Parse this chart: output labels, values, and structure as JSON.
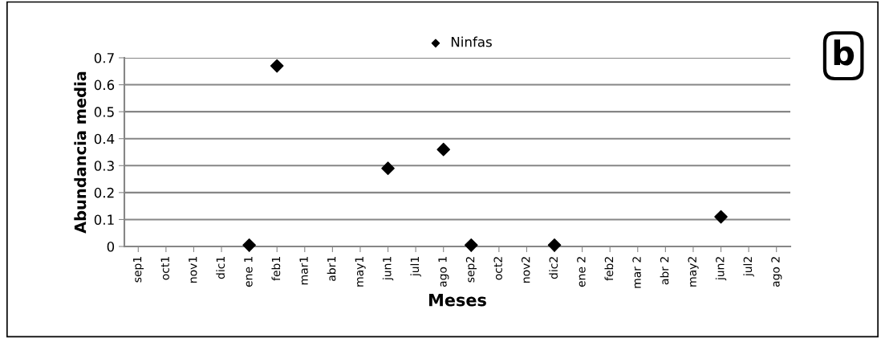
{
  "chart_data": {
    "type": "scatter",
    "xlabel": "Meses",
    "ylabel": "Abundancia media",
    "categories": [
      "sep1",
      "oct1",
      "nov1",
      "dic1",
      "ene 1",
      "feb1",
      "mar1",
      "abr1",
      "may1",
      "jun1",
      "jul1",
      "ago 1",
      "sep2",
      "oct2",
      "nov2",
      "dic2",
      "ene 2",
      "feb2",
      "mar 2",
      "abr 2",
      "may2",
      "jun2",
      "jul2",
      "ago 2"
    ],
    "series": [
      {
        "name": "Ninfas",
        "color": "#000000",
        "values": [
          null,
          null,
          null,
          null,
          0.005,
          0.67,
          null,
          null,
          null,
          0.29,
          null,
          0.36,
          0.005,
          null,
          null,
          0.005,
          null,
          null,
          null,
          null,
          null,
          0.11,
          null,
          null
        ]
      }
    ],
    "ylim": [
      0,
      0.7
    ],
    "yticks": [
      0,
      {
        "value": 0.1,
        "label": "0.1"
      },
      {
        "value": 0.2,
        "label": "0.2"
      },
      {
        "value": 0.3,
        "label": "0.3"
      },
      {
        "value": 0.4,
        "label": "0.4"
      },
      {
        "value": 0.5,
        "label": "0.5"
      },
      {
        "value": 0.6,
        "label": "0.6"
      },
      {
        "value": 0.7,
        "label": "0.7"
      }
    ],
    "grid": "y",
    "legend": "top",
    "marker": "diamond",
    "annotations": [
      "b"
    ]
  }
}
